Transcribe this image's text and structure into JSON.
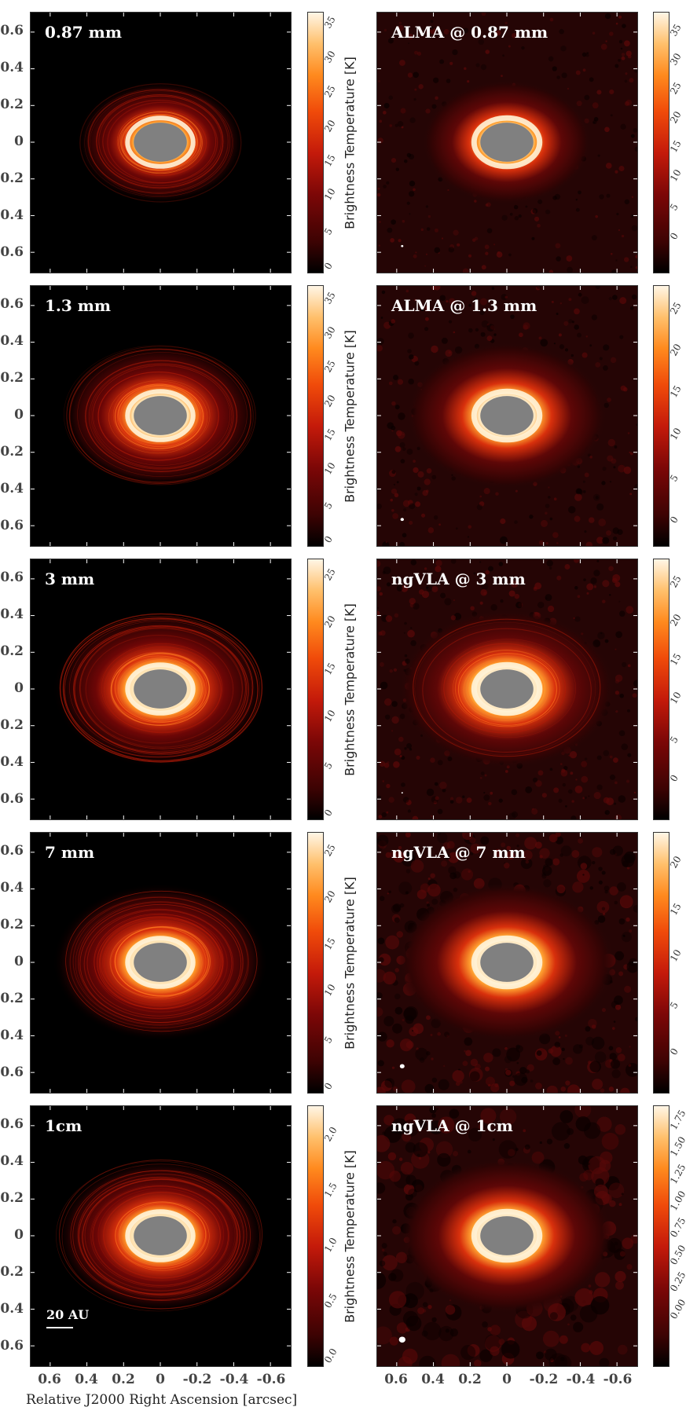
{
  "y_ticks": [
    "0.6",
    "0.4",
    "0.2",
    "0",
    "-0.2",
    "-0.4",
    "-0.6"
  ],
  "x_ticks": [
    "0.6",
    "0.4",
    "0.2",
    "0",
    "-0.2",
    "-0.4",
    "-0.6"
  ],
  "x_axis_label": "Relative J2000 Right Ascension [arcsec]",
  "colorbar_title": "Brightness Temperature [K]",
  "scale_bar_label": "20 AU",
  "rows": [
    {
      "sim_label": "0.87 mm",
      "sim_cbar_ticks": [
        "0",
        "5",
        "10",
        "15",
        "20",
        "25",
        "30",
        "35"
      ],
      "obs_label": "ALMA @ 0.87 mm",
      "obs_cbar_ticks": [
        "0",
        "5",
        "10",
        "15",
        "20",
        "25",
        "30",
        "35"
      ]
    },
    {
      "sim_label": "1.3 mm",
      "sim_cbar_ticks": [
        "0",
        "5",
        "10",
        "15",
        "20",
        "25",
        "30",
        "35"
      ],
      "obs_label": "ALMA @ 1.3 mm",
      "obs_cbar_ticks": [
        "0",
        "5",
        "10",
        "15",
        "20",
        "25"
      ]
    },
    {
      "sim_label": "3 mm",
      "sim_cbar_ticks": [
        "0",
        "5",
        "10",
        "15",
        "20",
        "25"
      ],
      "obs_label": "ngVLA @ 3 mm",
      "obs_cbar_ticks": [
        "0",
        "5",
        "10",
        "15",
        "20",
        "25"
      ]
    },
    {
      "sim_label": "7 mm",
      "sim_cbar_ticks": [
        "0",
        "5",
        "10",
        "15",
        "20",
        "25"
      ],
      "obs_label": "ngVLA @ 7 mm",
      "obs_cbar_ticks": [
        "0",
        "5",
        "10",
        "15",
        "20"
      ]
    },
    {
      "sim_label": "1cm",
      "sim_cbar_ticks": [
        "0.0",
        "0.5",
        "1.0",
        "1.5",
        "2.0"
      ],
      "obs_label": "ngVLA @ 1cm",
      "obs_cbar_ticks": [
        "0.00",
        "0.25",
        "0.50",
        "0.75",
        "1.00",
        "1.25",
        "1.50",
        "1.75"
      ]
    }
  ],
  "colors": {
    "colormap": [
      "#000000",
      "#3d0303",
      "#7c0707",
      "#c41a0a",
      "#f04b0a",
      "#ff8a1e",
      "#ffc06c",
      "#fff6e6"
    ],
    "inner_mask": "#808080",
    "axis_text": "#444444"
  }
}
